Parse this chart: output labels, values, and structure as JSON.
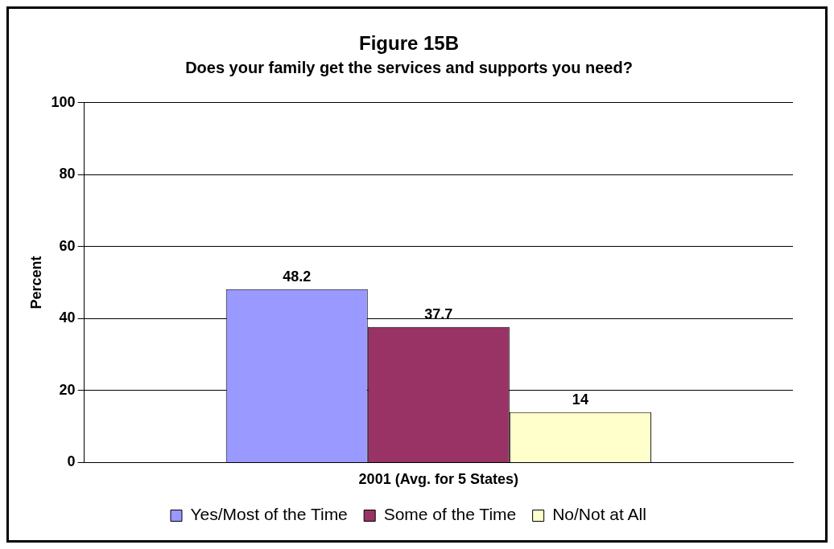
{
  "chart_data": {
    "type": "bar",
    "title": "Figure 15B",
    "subtitle": "Does your family get the services and supports you need?",
    "ylabel": "Percent",
    "categories": [
      "2001 (Avg. for 5 States)"
    ],
    "series": [
      {
        "name": "Yes/Most of the Time",
        "color": "#9999ff",
        "values": [
          48.2
        ]
      },
      {
        "name": "Some of the Time",
        "color": "#993366",
        "values": [
          37.7
        ]
      },
      {
        "name": "No/Not at All",
        "color": "#ffffcc",
        "values": [
          14
        ]
      }
    ],
    "ylim": [
      0,
      100
    ],
    "yticks": [
      0,
      20,
      40,
      60,
      80,
      100
    ],
    "grid": "y",
    "legend": "bottom",
    "data_labels": true
  }
}
